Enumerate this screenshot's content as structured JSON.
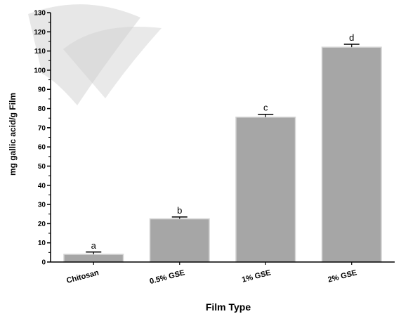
{
  "chart_data": {
    "type": "bar",
    "title": "",
    "xlabel": "Film Type",
    "ylabel": "mg gallic acid/g Film",
    "categories": [
      "Chitosan",
      "0.5% GSE",
      "1% GSE",
      "2% GSE"
    ],
    "values": [
      4,
      22.5,
      75.5,
      112
    ],
    "errors": [
      1.2,
      1.0,
      1.5,
      1.5
    ],
    "significance_letters": [
      "a",
      "b",
      "c",
      "d"
    ],
    "ylim": [
      0,
      130
    ],
    "yticks": [
      0,
      10,
      20,
      30,
      40,
      50,
      60,
      70,
      80,
      90,
      100,
      110,
      120,
      130
    ],
    "grid": false,
    "bar_color": "#a6a6a6",
    "bar_edge_color": "#d4d4d4"
  }
}
